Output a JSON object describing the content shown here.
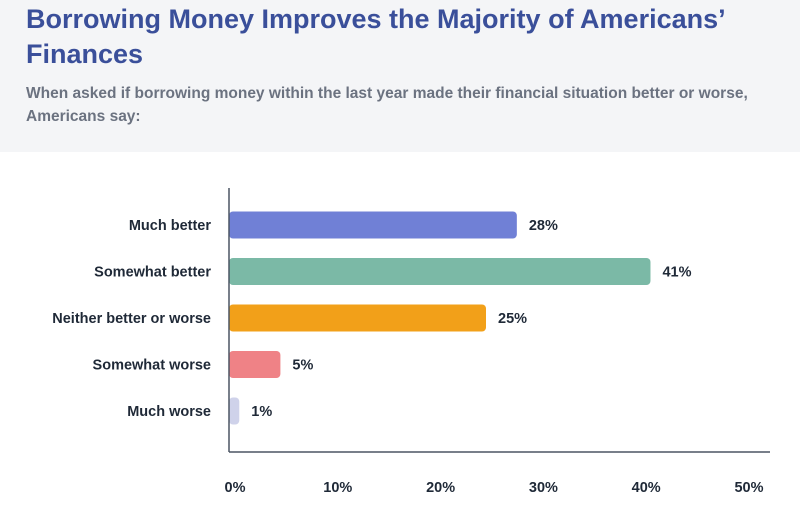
{
  "header": {
    "title": "Borrowing Money Improves the Majority of Americans’ Finances",
    "subtitle": "When asked if borrowing money within the last year made their financial situation better or worse, Americans say:"
  },
  "chart_data": {
    "type": "bar",
    "orientation": "horizontal",
    "title": "Borrowing Money Improves the Majority of Americans’ Finances",
    "categories": [
      "Much better",
      "Somewhat better",
      "Neither better or worse",
      "Somewhat worse",
      "Much worse"
    ],
    "values": [
      28,
      41,
      25,
      5,
      1
    ],
    "value_labels": [
      "28%",
      "41%",
      "25%",
      "5%",
      "1%"
    ],
    "colors": [
      "#7080d6",
      "#7bb9a6",
      "#f2a019",
      "#ef8286",
      "#cfd2ea"
    ],
    "xlim": [
      0,
      50
    ],
    "xticks": [
      0,
      10,
      20,
      30,
      40,
      50
    ],
    "xtick_labels": [
      "0%",
      "10%",
      "20%",
      "30%",
      "40%",
      "50%"
    ],
    "xlabel": "",
    "ylabel": "",
    "grid": false
  }
}
